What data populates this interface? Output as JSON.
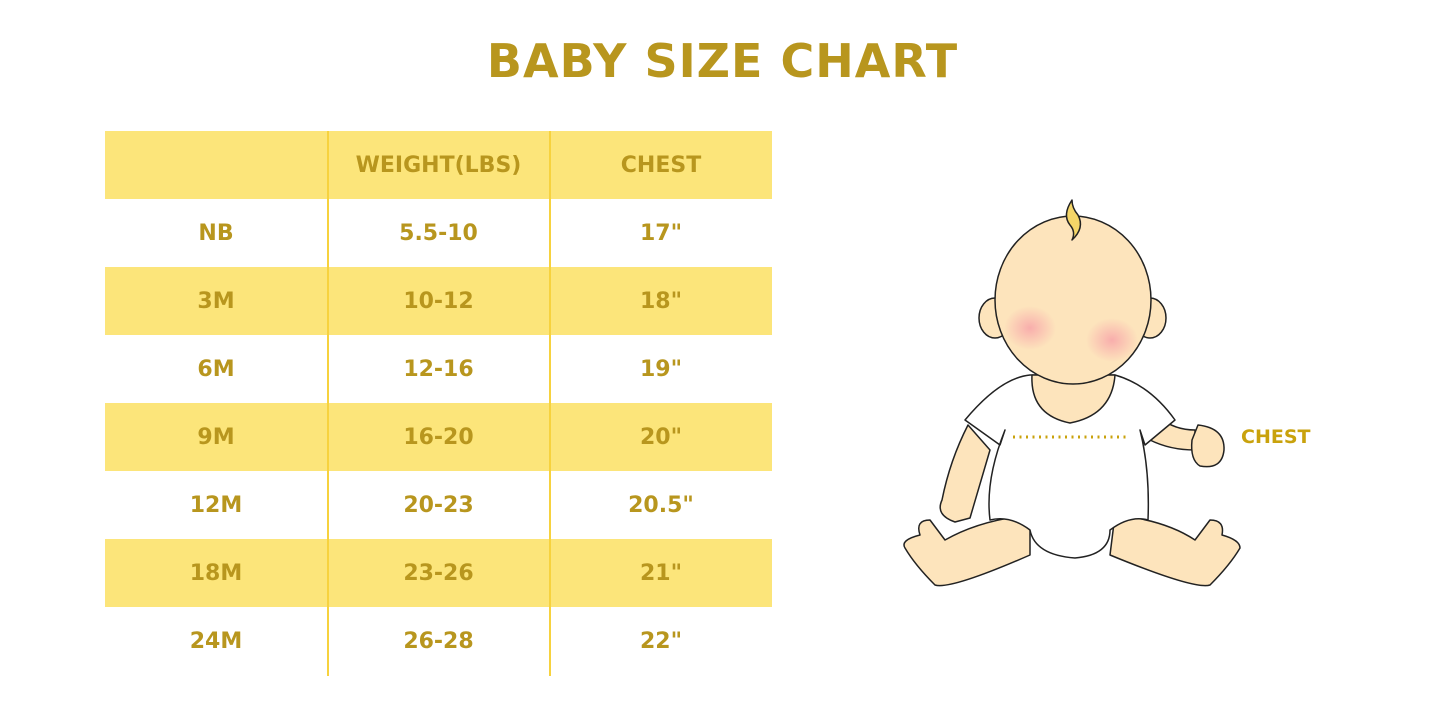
{
  "title": "BABY SIZE CHART",
  "table": {
    "headers": [
      "",
      "WEIGHT(LBS)",
      "CHEST"
    ],
    "rows": [
      [
        "NB",
        "5.5-10",
        "17\""
      ],
      [
        "3M",
        "10-12",
        "18\""
      ],
      [
        "6M",
        "12-16",
        "19\""
      ],
      [
        "9M",
        "16-20",
        "20\""
      ],
      [
        "12M",
        "20-23",
        "20.5\""
      ],
      [
        "18M",
        "23-26",
        "21\""
      ],
      [
        "24M",
        "26-28",
        "22\""
      ]
    ]
  },
  "illustration": {
    "icon": "baby-illustration-icon",
    "chest_label": "CHEST"
  },
  "colors": {
    "text": "#B8961E",
    "band": "#FCE57A",
    "divider": "#F7D23E",
    "skin": "#FDE4BC"
  }
}
